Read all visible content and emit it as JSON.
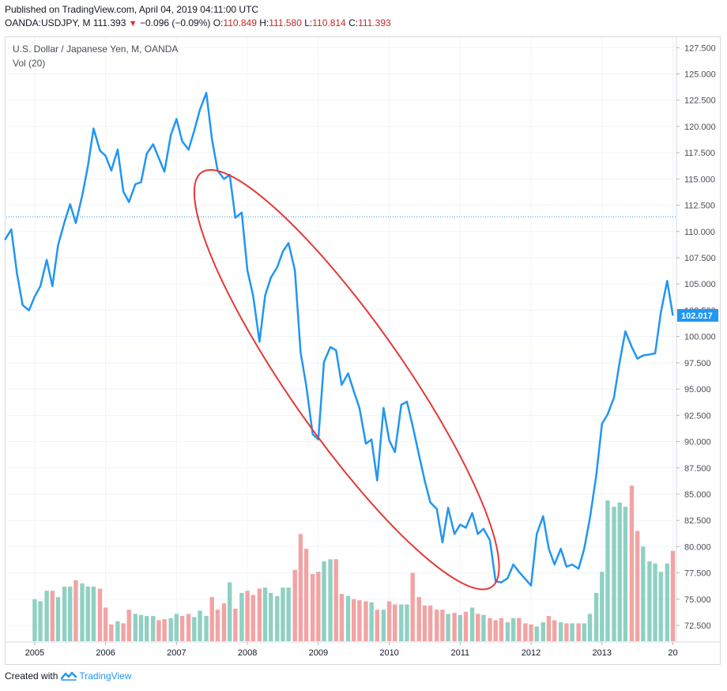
{
  "header": {
    "published": "Published on TradingView.com, April 04, 2019 04:11:00 UTC",
    "symbol": "OANDA:USDJPY, M",
    "last": "111.393",
    "change": "−0.096 (−0.09%)",
    "open_label": "O:",
    "open": "110.849",
    "high_label": "H:",
    "high": "111.580",
    "low_label": "L:",
    "low": "110.814",
    "close_label": "C:",
    "close": "111.393"
  },
  "legend": {
    "title": "U.S. Dollar / Japanese Yen, M, OANDA",
    "volume": "Vol (20)"
  },
  "footer": {
    "created_with": "Created with",
    "brand": "TradingView"
  },
  "colors": {
    "line": "#2196f3",
    "ellipse": "#e53935",
    "vol_up": "#8fd0c3",
    "vol_down": "#f2a3a3",
    "grid": "#f0f3fa",
    "axis_text": "#4a4e57",
    "price_label_bg": "#2196f3",
    "dotted_line": "#2196f3"
  },
  "chart_data": {
    "type": "line",
    "title": "U.S. Dollar / Japanese Yen, M, OANDA",
    "x_ticks": [
      "2005",
      "2006",
      "2007",
      "2008",
      "2009",
      "2010",
      "2011",
      "2012",
      "2013",
      "20"
    ],
    "y_ticks": [
      "72.500",
      "75.000",
      "77.500",
      "80.000",
      "82.500",
      "85.000",
      "87.500",
      "90.000",
      "92.500",
      "95.000",
      "97.500",
      "100.000",
      "102.500",
      "105.000",
      "107.500",
      "110.000",
      "112.500",
      "115.000",
      "117.500",
      "120.000",
      "122.500",
      "125.000",
      "127.500"
    ],
    "ylim": [
      71.0,
      128.5
    ],
    "xlim": [
      2004.6,
      2014.05
    ],
    "last_price_label": "102.017",
    "current_price": 111.393,
    "grid": true,
    "series": [
      {
        "x": [
          2004.58,
          2004.67,
          2004.75,
          2004.83,
          2004.92,
          2005.0,
          2005.08,
          2005.17,
          2005.25,
          2005.33,
          2005.42,
          2005.5,
          2005.58,
          2005.67,
          2005.75,
          2005.83,
          2005.92,
          2006.0,
          2006.08,
          2006.17,
          2006.25,
          2006.33,
          2006.42,
          2006.5,
          2006.58,
          2006.67,
          2006.75,
          2006.83,
          2006.92,
          2007.0,
          2007.08,
          2007.17,
          2007.25,
          2007.33,
          2007.42,
          2007.5,
          2007.58,
          2007.67,
          2007.75,
          2007.83,
          2007.92,
          2008.0,
          2008.08,
          2008.17,
          2008.25,
          2008.33,
          2008.42,
          2008.5,
          2008.58,
          2008.67,
          2008.75,
          2008.83,
          2008.92,
          2009.0,
          2009.08,
          2009.17,
          2009.25,
          2009.33,
          2009.42,
          2009.5,
          2009.58,
          2009.67,
          2009.75,
          2009.83,
          2009.92,
          2010.0,
          2010.08,
          2010.17,
          2010.25,
          2010.33,
          2010.42,
          2010.5,
          2010.58,
          2010.67,
          2010.75,
          2010.83,
          2010.92,
          2011.0,
          2011.08,
          2011.17,
          2011.25,
          2011.33,
          2011.42,
          2011.5,
          2011.58,
          2011.67,
          2011.75,
          2011.83,
          2011.92,
          2012.0,
          2012.08,
          2012.17,
          2012.25,
          2012.33,
          2012.42,
          2012.5,
          2012.58,
          2012.67,
          2012.75,
          2012.83,
          2012.92,
          2013.0,
          2013.08,
          2013.17,
          2013.25,
          2013.33,
          2013.42,
          2013.5,
          2013.58,
          2013.67,
          2013.75,
          2013.83,
          2013.92,
          2014.0
        ],
        "values": [
          109.2,
          110.2,
          106.0,
          103.0,
          102.5,
          103.8,
          104.8,
          107.3,
          104.8,
          108.7,
          110.9,
          112.6,
          110.8,
          113.4,
          116.2,
          119.8,
          117.7,
          117.2,
          115.8,
          117.8,
          113.8,
          112.8,
          114.5,
          114.7,
          117.4,
          118.3,
          117.0,
          115.7,
          119.2,
          120.7,
          118.6,
          117.8,
          119.6,
          121.6,
          123.2,
          118.8,
          115.8,
          115.0,
          115.4,
          111.3,
          111.8,
          106.3,
          103.9,
          99.5,
          103.9,
          105.6,
          106.6,
          108.1,
          108.9,
          106.3,
          98.5,
          95.3,
          90.7,
          90.2,
          97.6,
          99.0,
          98.7,
          95.4,
          96.5,
          94.8,
          93.2,
          89.8,
          90.2,
          86.3,
          93.2,
          90.1,
          89.0,
          93.5,
          93.8,
          91.5,
          88.7,
          86.3,
          84.2,
          83.6,
          80.4,
          83.7,
          81.2,
          82.1,
          81.8,
          83.2,
          81.2,
          81.7,
          80.6,
          76.7,
          76.6,
          77.0,
          78.3,
          77.6,
          76.9,
          76.3,
          81.2,
          82.9,
          79.8,
          78.3,
          79.8,
          78.1,
          78.3,
          77.9,
          79.8,
          82.7,
          86.8,
          91.7,
          92.6,
          94.2,
          97.6,
          100.5,
          99.0,
          97.9,
          98.2,
          98.3,
          98.4,
          102.3,
          105.3,
          102.0
        ],
        "volume_note": "Vol (20)"
      }
    ],
    "volume": {
      "x": [
        2005.0,
        2005.08,
        2005.17,
        2005.25,
        2005.33,
        2005.42,
        2005.5,
        2005.58,
        2005.67,
        2005.75,
        2005.83,
        2005.92,
        2006.0,
        2006.08,
        2006.17,
        2006.25,
        2006.33,
        2006.42,
        2006.5,
        2006.58,
        2006.67,
        2006.75,
        2006.83,
        2006.92,
        2007.0,
        2007.08,
        2007.17,
        2007.25,
        2007.33,
        2007.42,
        2007.5,
        2007.58,
        2007.67,
        2007.75,
        2007.83,
        2007.92,
        2008.0,
        2008.08,
        2008.17,
        2008.25,
        2008.33,
        2008.42,
        2008.5,
        2008.58,
        2008.67,
        2008.75,
        2008.83,
        2008.92,
        2009.0,
        2009.08,
        2009.17,
        2009.25,
        2009.33,
        2009.42,
        2009.5,
        2009.58,
        2009.67,
        2009.75,
        2009.83,
        2009.92,
        2010.0,
        2010.08,
        2010.17,
        2010.25,
        2010.33,
        2010.42,
        2010.5,
        2010.58,
        2010.67,
        2010.75,
        2010.83,
        2010.92,
        2011.0,
        2011.08,
        2011.17,
        2011.25,
        2011.33,
        2011.42,
        2011.5,
        2011.58,
        2011.67,
        2011.75,
        2011.83,
        2011.92,
        2012.0,
        2012.08,
        2012.17,
        2012.25,
        2012.33,
        2012.42,
        2012.5,
        2012.58,
        2012.67,
        2012.75,
        2012.83,
        2012.92,
        2013.0,
        2013.08,
        2013.17,
        2013.25,
        2013.33,
        2013.42,
        2013.5,
        2013.58,
        2013.67,
        2013.75,
        2013.83,
        2013.92,
        2014.0
      ],
      "values": [
        75.0,
        74.8,
        75.8,
        75.8,
        75.2,
        76.2,
        76.2,
        76.8,
        76.5,
        76.2,
        76.2,
        76.0,
        74.2,
        72.6,
        72.9,
        72.7,
        74.0,
        73.6,
        73.5,
        73.4,
        73.4,
        73.0,
        73.1,
        73.2,
        73.6,
        73.4,
        73.6,
        73.3,
        73.9,
        73.4,
        75.2,
        74.0,
        74.6,
        76.6,
        74.1,
        75.6,
        75.8,
        75.4,
        76.0,
        76.1,
        75.6,
        75.3,
        76.1,
        76.1,
        77.8,
        81.2,
        79.8,
        77.4,
        77.6,
        78.6,
        78.8,
        78.8,
        75.5,
        75.3,
        75.0,
        74.9,
        74.8,
        74.7,
        74.0,
        74.0,
        74.8,
        74.5,
        74.5,
        74.5,
        77.5,
        75.2,
        74.4,
        74.4,
        74.0,
        74.0,
        73.6,
        73.7,
        73.5,
        73.8,
        74.2,
        73.6,
        73.5,
        73.2,
        73.0,
        73.2,
        72.8,
        73.2,
        73.2,
        72.7,
        72.6,
        72.4,
        72.8,
        73.4,
        73.0,
        72.8,
        72.7,
        72.7,
        72.7,
        72.7,
        73.6,
        75.6,
        77.6,
        84.4,
        83.8,
        84.2,
        83.8,
        85.8,
        81.5,
        80.0,
        78.6,
        78.4,
        77.6,
        78.4,
        79.6
      ]
    },
    "annotations": [
      {
        "type": "ellipse",
        "note": "downtrend highlight"
      }
    ]
  }
}
